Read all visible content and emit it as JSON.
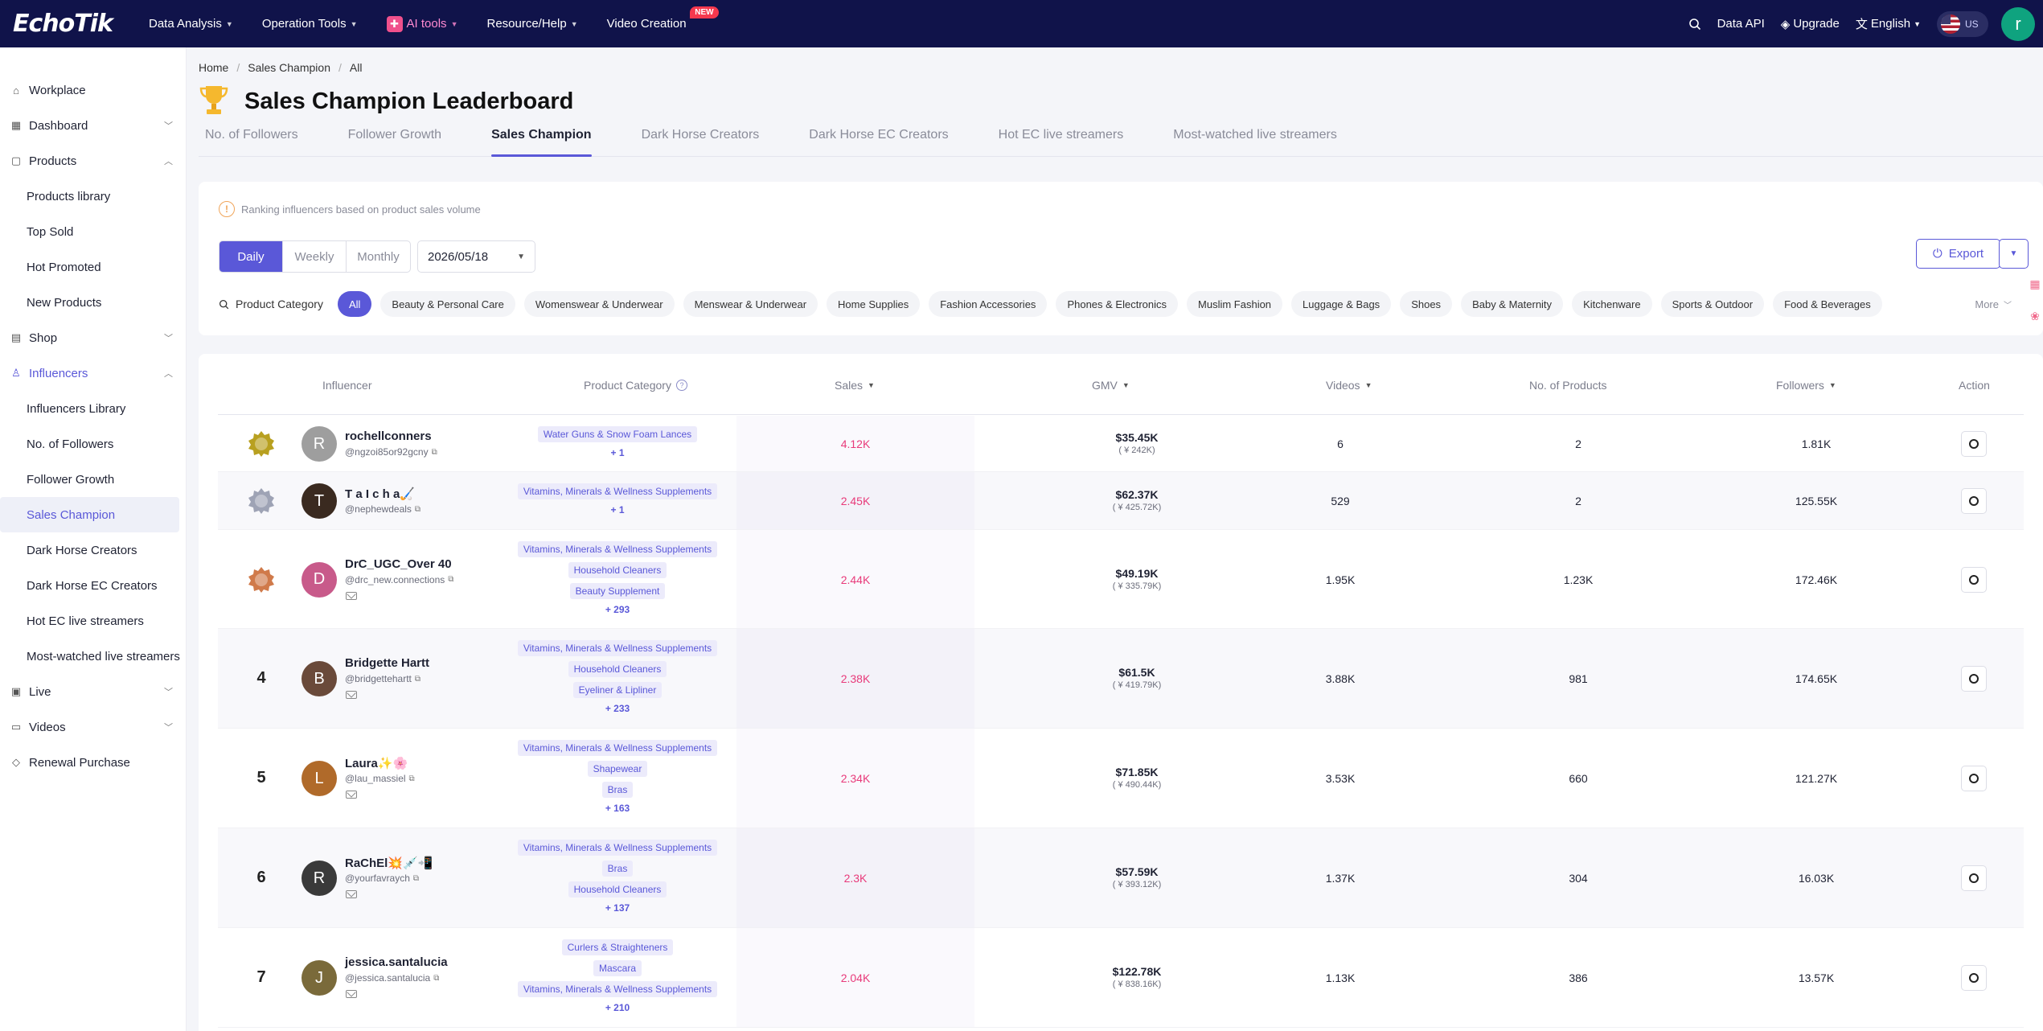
{
  "nav": {
    "logo": "EchoTik",
    "items": [
      {
        "label": "Data Analysis"
      },
      {
        "label": "Operation Tools"
      },
      {
        "label": "AI tools"
      },
      {
        "label": "Resource/Help"
      },
      {
        "label": "Video Creation",
        "badge": "NEW"
      }
    ],
    "data_api": "Data API",
    "upgrade": "Upgrade",
    "language": "English",
    "region": "US",
    "user_initial": "r"
  },
  "sidebar": {
    "workplace": "Workplace",
    "dashboard": "Dashboard",
    "products": "Products",
    "products_sub": [
      "Products library",
      "Top Sold",
      "Hot Promoted",
      "New Products"
    ],
    "shop": "Shop",
    "influencers": "Influencers",
    "influencers_sub": [
      "Influencers Library",
      "No. of Followers",
      "Follower Growth",
      "Sales Champion",
      "Dark Horse Creators",
      "Dark Horse EC Creators",
      "Hot EC live streamers",
      "Most-watched live streamers"
    ],
    "live": "Live",
    "videos": "Videos",
    "renewal": "Renewal Purchase"
  },
  "breadcrumb": [
    "Home",
    "Sales Champion",
    "All"
  ],
  "page_title": "Sales Champion Leaderboard",
  "tabs": [
    "No. of Followers",
    "Follower Growth",
    "Sales Champion",
    "Dark Horse Creators",
    "Dark Horse EC Creators",
    "Hot EC live streamers",
    "Most-watched live streamers"
  ],
  "filters": {
    "notice": "Ranking influencers based on product sales volume",
    "periods": [
      "Daily",
      "Weekly",
      "Monthly"
    ],
    "date": "2026/05/18",
    "export": "Export",
    "category_label": "Product Category",
    "categories": [
      "All",
      "Beauty & Personal Care",
      "Womenswear & Underwear",
      "Menswear & Underwear",
      "Home Supplies",
      "Fashion Accessories",
      "Phones & Electronics",
      "Muslim Fashion",
      "Luggage & Bags",
      "Shoes",
      "Baby & Maternity",
      "Kitchenware",
      "Sports & Outdoor",
      "Food & Beverages"
    ],
    "more": "More"
  },
  "table": {
    "headers": {
      "influencer": "Influencer",
      "category": "Product Category",
      "sales": "Sales",
      "gmv": "GMV",
      "videos": "Videos",
      "products": "No. of Products",
      "followers": "Followers",
      "action": "Action"
    },
    "rows": [
      {
        "rank": "1",
        "name": "rochellconners",
        "handle": "@ngzoi85or92gcny",
        "initial": "R",
        "tags": [
          "Water Guns & Snow Foam Lances"
        ],
        "more": "+ 1",
        "sales": "4.12K",
        "gmv": "$35.45K",
        "gmv_cny": "( ¥ 242K)",
        "videos": "6",
        "products": "2",
        "followers": "1.81K",
        "mail": false
      },
      {
        "rank": "2",
        "name": "T a I c h a🏑",
        "handle": "@nephewdeals",
        "initial": "T",
        "tags": [
          "Vitamins, Minerals & Wellness Supplements"
        ],
        "more": "+ 1",
        "sales": "2.45K",
        "gmv": "$62.37K",
        "gmv_cny": "( ¥ 425.72K)",
        "videos": "529",
        "products": "2",
        "followers": "125.55K",
        "mail": false
      },
      {
        "rank": "3",
        "name": "DrC_UGC_Over 40",
        "handle": "@drc_new.connections",
        "initial": "D",
        "tags": [
          "Vitamins, Minerals & Wellness Supplements",
          "Household Cleaners",
          "Beauty Supplement"
        ],
        "more": "+ 293",
        "sales": "2.44K",
        "gmv": "$49.19K",
        "gmv_cny": "( ¥ 335.79K)",
        "videos": "1.95K",
        "products": "1.23K",
        "followers": "172.46K",
        "mail": true
      },
      {
        "rank": "4",
        "name": "Bridgette Hartt",
        "handle": "@bridgettehartt",
        "initial": "B",
        "tags": [
          "Vitamins, Minerals & Wellness Supplements",
          "Household Cleaners",
          "Eyeliner & Lipliner"
        ],
        "more": "+ 233",
        "sales": "2.38K",
        "gmv": "$61.5K",
        "gmv_cny": "( ¥ 419.79K)",
        "videos": "3.88K",
        "products": "981",
        "followers": "174.65K",
        "mail": true
      },
      {
        "rank": "5",
        "name": "Laura✨🌸",
        "handle": "@lau_massiel",
        "initial": "L",
        "tags": [
          "Vitamins, Minerals & Wellness Supplements",
          "Shapewear",
          "Bras"
        ],
        "more": "+ 163",
        "sales": "2.34K",
        "gmv": "$71.85K",
        "gmv_cny": "( ¥ 490.44K)",
        "videos": "3.53K",
        "products": "660",
        "followers": "121.27K",
        "mail": true
      },
      {
        "rank": "6",
        "name": "RaChEl💥💉📲",
        "handle": "@yourfavraych",
        "initial": "R",
        "tags": [
          "Vitamins, Minerals & Wellness Supplements",
          "Bras",
          "Household Cleaners"
        ],
        "more": "+ 137",
        "sales": "2.3K",
        "gmv": "$57.59K",
        "gmv_cny": "( ¥ 393.12K)",
        "videos": "1.37K",
        "products": "304",
        "followers": "16.03K",
        "mail": true
      },
      {
        "rank": "7",
        "name": "jessica.santalucia",
        "handle": "@jessica.santalucia",
        "initial": "J",
        "tags": [
          "Curlers & Straighteners",
          "Mascara",
          "Vitamins, Minerals & Wellness Supplements"
        ],
        "more": "+ 210",
        "sales": "2.04K",
        "gmv": "$122.78K",
        "gmv_cny": "( ¥ 838.16K)",
        "videos": "1.13K",
        "products": "386",
        "followers": "13.57K",
        "mail": true
      }
    ]
  },
  "colors": {
    "nav_bg": "#10134a",
    "accent": "#5a58d8",
    "sales": "#e83a7a",
    "user_avatar": "#0fa37f"
  }
}
